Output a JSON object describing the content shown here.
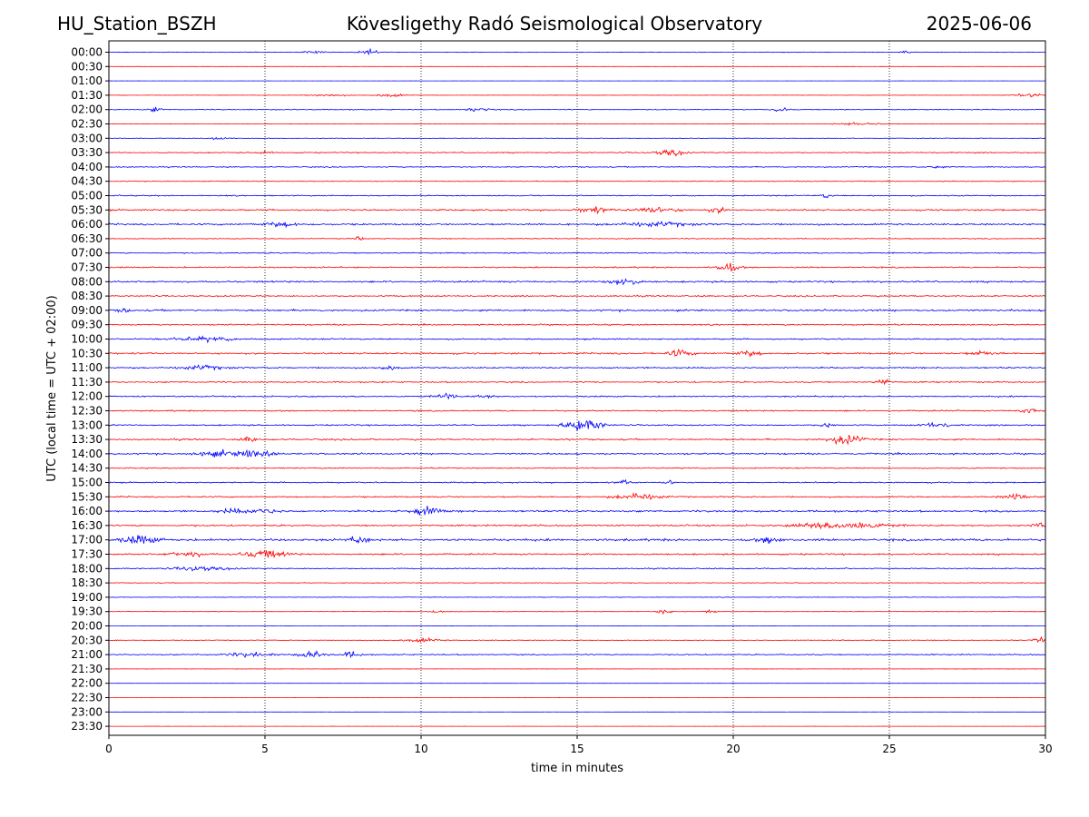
{
  "header": {
    "station": "HU_Station_BSZH",
    "title": "Kövesligethy Radó Seismological Observatory",
    "date": "2025-06-06"
  },
  "chart_data": {
    "type": "line",
    "title": "Kövesligethy Radó Seismological Observatory",
    "xlabel": "time in minutes",
    "ylabel": "UTC (local time = UTC + 02:00)",
    "xlim": [
      0,
      30
    ],
    "x_ticks": [
      "0",
      "5",
      "10",
      "15",
      "20",
      "25",
      "30"
    ],
    "vertical_gridlines_at": [
      5,
      10,
      15,
      20,
      25
    ],
    "grid": "vertical dotted",
    "trace_colors": [
      "#0000ff",
      "#ff0000"
    ],
    "rows": [
      "00:00",
      "00:30",
      "01:00",
      "01:30",
      "02:00",
      "02:30",
      "03:00",
      "03:30",
      "04:00",
      "04:30",
      "05:00",
      "05:30",
      "06:00",
      "06:30",
      "07:00",
      "07:30",
      "08:00",
      "08:30",
      "09:00",
      "09:30",
      "10:00",
      "10:30",
      "11:00",
      "11:30",
      "12:00",
      "12:30",
      "13:00",
      "13:30",
      "14:00",
      "14:30",
      "15:00",
      "15:30",
      "16:00",
      "16:30",
      "17:00",
      "17:30",
      "18:00",
      "18:30",
      "19:00",
      "19:30",
      "20:00",
      "20:30",
      "21:00",
      "21:30",
      "22:00",
      "22:30",
      "23:00",
      "23:30"
    ],
    "noise_level": [
      0.25,
      0.1,
      0.05,
      0.15,
      0.4,
      0.15,
      0.25,
      0.5,
      0.45,
      0.35,
      0.5,
      0.7,
      0.75,
      0.4,
      0.5,
      0.6,
      0.75,
      0.6,
      0.8,
      0.6,
      0.6,
      0.75,
      0.65,
      0.6,
      0.6,
      0.6,
      0.6,
      0.7,
      0.7,
      0.5,
      0.55,
      0.6,
      0.8,
      0.7,
      1.0,
      0.7,
      0.5,
      0.3,
      0.25,
      0.2,
      0.1,
      0.35,
      0.5,
      0.1,
      0.05,
      0.05,
      0.05,
      0.05
    ],
    "events": [
      {
        "row": 0,
        "minute": 6.6,
        "amplitude": 1.5,
        "duration": 0.5
      },
      {
        "row": 0,
        "minute": 8.3,
        "amplitude": 2.5,
        "duration": 0.4
      },
      {
        "row": 0,
        "minute": 25.5,
        "amplitude": 1.5,
        "duration": 0.3
      },
      {
        "row": 3,
        "minute": 7.0,
        "amplitude": 1.5,
        "duration": 0.7
      },
      {
        "row": 3,
        "minute": 9.0,
        "amplitude": 1.8,
        "duration": 0.6
      },
      {
        "row": 3,
        "minute": 29.5,
        "amplitude": 2.0,
        "duration": 0.6
      },
      {
        "row": 4,
        "minute": 1.5,
        "amplitude": 2.0,
        "duration": 0.3
      },
      {
        "row": 4,
        "minute": 11.8,
        "amplitude": 2.0,
        "duration": 0.5
      },
      {
        "row": 4,
        "minute": 21.5,
        "amplitude": 2.0,
        "duration": 0.3
      },
      {
        "row": 5,
        "minute": 24.0,
        "amplitude": 1.5,
        "duration": 1.0
      },
      {
        "row": 6,
        "minute": 3.5,
        "amplitude": 1.5,
        "duration": 0.5
      },
      {
        "row": 7,
        "minute": 18.0,
        "amplitude": 3.5,
        "duration": 0.6
      },
      {
        "row": 7,
        "minute": 5.0,
        "amplitude": 2.0,
        "duration": 0.3
      },
      {
        "row": 8,
        "minute": 26.5,
        "amplitude": 1.5,
        "duration": 0.3
      },
      {
        "row": 10,
        "minute": 23.0,
        "amplitude": 2.5,
        "duration": 0.2
      },
      {
        "row": 11,
        "minute": 15.5,
        "amplitude": 3.0,
        "duration": 0.6
      },
      {
        "row": 11,
        "minute": 17.5,
        "amplitude": 2.5,
        "duration": 1.0
      },
      {
        "row": 11,
        "minute": 19.5,
        "amplitude": 2.5,
        "duration": 0.4
      },
      {
        "row": 12,
        "minute": 17.5,
        "amplitude": 2.0,
        "duration": 1.5
      },
      {
        "row": 12,
        "minute": 5.5,
        "amplitude": 2.0,
        "duration": 0.8
      },
      {
        "row": 13,
        "minute": 8.0,
        "amplitude": 2.0,
        "duration": 0.2
      },
      {
        "row": 15,
        "minute": 19.8,
        "amplitude": 4.0,
        "duration": 0.5
      },
      {
        "row": 16,
        "minute": 16.5,
        "amplitude": 4.0,
        "duration": 0.6
      },
      {
        "row": 18,
        "minute": 0.5,
        "amplitude": 2.0,
        "duration": 0.3
      },
      {
        "row": 20,
        "minute": 3.0,
        "amplitude": 1.8,
        "duration": 1.5
      },
      {
        "row": 21,
        "minute": 18.3,
        "amplitude": 3.0,
        "duration": 0.5
      },
      {
        "row": 21,
        "minute": 20.5,
        "amplitude": 2.5,
        "duration": 0.5
      },
      {
        "row": 21,
        "minute": 28.0,
        "amplitude": 2.0,
        "duration": 0.6
      },
      {
        "row": 22,
        "minute": 3.0,
        "amplitude": 2.0,
        "duration": 1.0
      },
      {
        "row": 22,
        "minute": 9.0,
        "amplitude": 2.0,
        "duration": 0.4
      },
      {
        "row": 23,
        "minute": 24.8,
        "amplitude": 3.0,
        "duration": 0.3
      },
      {
        "row": 24,
        "minute": 10.8,
        "amplitude": 3.0,
        "duration": 0.4
      },
      {
        "row": 24,
        "minute": 12.0,
        "amplitude": 2.0,
        "duration": 0.4
      },
      {
        "row": 25,
        "minute": 29.5,
        "amplitude": 3.0,
        "duration": 0.4
      },
      {
        "row": 26,
        "minute": 15.2,
        "amplitude": 6.0,
        "duration": 0.8
      },
      {
        "row": 26,
        "minute": 26.5,
        "amplitude": 2.5,
        "duration": 0.6
      },
      {
        "row": 26,
        "minute": 23.0,
        "amplitude": 2.0,
        "duration": 0.3
      },
      {
        "row": 27,
        "minute": 23.6,
        "amplitude": 5.0,
        "duration": 0.7
      },
      {
        "row": 27,
        "minute": 4.5,
        "amplitude": 2.5,
        "duration": 0.3
      },
      {
        "row": 28,
        "minute": 4.7,
        "amplitude": 4.5,
        "duration": 0.6
      },
      {
        "row": 28,
        "minute": 3.5,
        "amplitude": 2.5,
        "duration": 1.0
      },
      {
        "row": 30,
        "minute": 16.5,
        "amplitude": 2.0,
        "duration": 0.3
      },
      {
        "row": 30,
        "minute": 18.0,
        "amplitude": 2.0,
        "duration": 0.3
      },
      {
        "row": 31,
        "minute": 17.0,
        "amplitude": 3.0,
        "duration": 1.0
      },
      {
        "row": 31,
        "minute": 29.0,
        "amplitude": 3.0,
        "duration": 0.5
      },
      {
        "row": 32,
        "minute": 10.2,
        "amplitude": 4.0,
        "duration": 0.6
      },
      {
        "row": 32,
        "minute": 5.0,
        "amplitude": 3.0,
        "duration": 0.5
      },
      {
        "row": 32,
        "minute": 4.0,
        "amplitude": 2.0,
        "duration": 0.6
      },
      {
        "row": 33,
        "minute": 24.0,
        "amplitude": 4.0,
        "duration": 1.2
      },
      {
        "row": 33,
        "minute": 22.5,
        "amplitude": 2.5,
        "duration": 0.8
      },
      {
        "row": 33,
        "minute": 29.8,
        "amplitude": 2.5,
        "duration": 0.3
      },
      {
        "row": 34,
        "minute": 1.0,
        "amplitude": 4.0,
        "duration": 0.8
      },
      {
        "row": 34,
        "minute": 8.0,
        "amplitude": 3.0,
        "duration": 0.4
      },
      {
        "row": 34,
        "minute": 21.2,
        "amplitude": 3.0,
        "duration": 0.5
      },
      {
        "row": 35,
        "minute": 5.0,
        "amplitude": 3.5,
        "duration": 1.0
      },
      {
        "row": 35,
        "minute": 2.5,
        "amplitude": 2.5,
        "duration": 0.8
      },
      {
        "row": 36,
        "minute": 3.0,
        "amplitude": 2.0,
        "duration": 1.2
      },
      {
        "row": 39,
        "minute": 17.8,
        "amplitude": 3.0,
        "duration": 0.3
      },
      {
        "row": 39,
        "minute": 10.5,
        "amplitude": 2.0,
        "duration": 0.3
      },
      {
        "row": 39,
        "minute": 19.3,
        "amplitude": 2.0,
        "duration": 0.3
      },
      {
        "row": 41,
        "minute": 29.8,
        "amplitude": 2.5,
        "duration": 0.3
      },
      {
        "row": 41,
        "minute": 10.0,
        "amplitude": 1.8,
        "duration": 0.8
      },
      {
        "row": 42,
        "minute": 6.5,
        "amplitude": 3.0,
        "duration": 0.6
      },
      {
        "row": 42,
        "minute": 7.8,
        "amplitude": 3.0,
        "duration": 0.4
      },
      {
        "row": 42,
        "minute": 4.5,
        "amplitude": 2.0,
        "duration": 1.0
      }
    ]
  }
}
